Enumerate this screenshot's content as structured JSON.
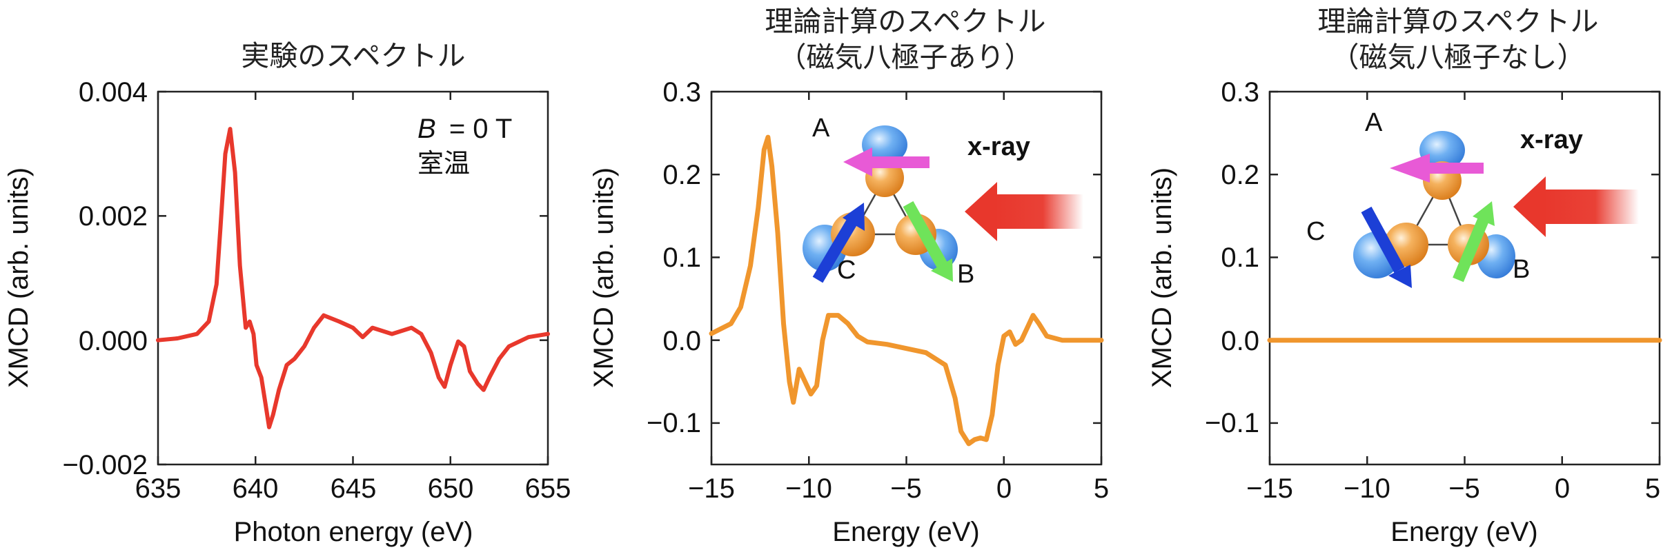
{
  "colors": {
    "experiment": "#e8382c",
    "theory": "#f0962d",
    "pink_arrow": "#e85ad6",
    "blue_arrow": "#1c3fd6",
    "green_arrow": "#6fe35a",
    "xray_arrow": "#e8372c",
    "orange_atom": "#ef9a3a",
    "blue_lobe": "#3f8fe8"
  },
  "icons": [
    "magnetic-octupole-cluster-icon",
    "xray-arrow-icon",
    "spin-arrow-icon"
  ],
  "chart_data": [
    {
      "type": "line",
      "title": "実験のスペクトル",
      "xlabel": "Photon energy (eV)",
      "ylabel": "XMCD (arb. units)",
      "xlim": [
        635,
        655
      ],
      "ylim": [
        -0.002,
        0.004
      ],
      "xticks": [
        "635",
        "640",
        "645",
        "650",
        "655"
      ],
      "yticks": [
        "−0.002",
        "0.000",
        "0.002",
        "0.004"
      ],
      "annotations": {
        "field": "= 0 T",
        "field_symbol": "B",
        "temperature": "室温"
      },
      "series": [
        {
          "color": "#e8382c",
          "x": [
            635,
            636,
            637,
            637.6,
            638,
            638.2,
            638.45,
            638.7,
            638.95,
            639.2,
            639.5,
            639.7,
            639.9,
            640.05,
            640.3,
            640.5,
            640.7,
            640.9,
            641.2,
            641.6,
            642,
            642.5,
            643,
            643.5,
            643.9,
            644.3,
            645,
            645.5,
            646,
            647,
            648,
            648.5,
            649,
            649.4,
            649.7,
            650,
            650.4,
            650.7,
            651,
            651.4,
            651.7,
            652,
            652.5,
            653,
            654,
            655
          ],
          "y": [
            0,
            3e-05,
            0.0001,
            0.0003,
            0.0009,
            0.0018,
            0.003,
            0.0034,
            0.0027,
            0.0012,
            0.0002,
            0.0003,
            0.0001,
            -0.0004,
            -0.0006,
            -0.001,
            -0.0014,
            -0.0012,
            -0.0008,
            -0.0004,
            -0.0003,
            -0.0001,
            0.0002,
            0.0004,
            0.00035,
            0.0003,
            0.0002,
            5e-05,
            0.0002,
            0.0001,
            0.0002,
            0.0001,
            -0.0002,
            -0.0006,
            -0.00075,
            -0.0004,
            -2e-05,
            -0.0001,
            -0.0005,
            -0.0007,
            -0.0008,
            -0.0006,
            -0.0003,
            -0.0001,
            5e-05,
            0.0001
          ]
        }
      ]
    },
    {
      "type": "line",
      "title": [
        "理論計算のスペクトル",
        "（磁気八極子あり）"
      ],
      "xlabel": "Energy (eV)",
      "ylabel": "XMCD (arb. units)",
      "xlim": [
        -15,
        5
      ],
      "ylim": [
        -0.15,
        0.3
      ],
      "xticks": [
        "−15",
        "−10",
        "−5",
        "0",
        "5"
      ],
      "yticks": [
        "−0.1",
        "0.0",
        "0.1",
        "0.2",
        "0.3"
      ],
      "inset_labels": {
        "a": "A",
        "b": "B",
        "c": "C",
        "xray": "x-ray"
      },
      "series": [
        {
          "color": "#f0962d",
          "x": [
            -15,
            -14,
            -13.5,
            -13,
            -12.6,
            -12.3,
            -12.1,
            -11.9,
            -11.6,
            -11.3,
            -11,
            -10.8,
            -10.5,
            -10.2,
            -9.9,
            -9.6,
            -9.3,
            -9,
            -8.5,
            -8,
            -7.5,
            -7,
            -6,
            -5,
            -4,
            -3,
            -2.5,
            -2.2,
            -1.8,
            -1.5,
            -1.2,
            -0.9,
            -0.6,
            -0.3,
            0,
            0.3,
            0.6,
            0.9,
            1.2,
            1.5,
            1.8,
            2.2,
            3,
            5
          ],
          "y": [
            0.008,
            0.02,
            0.04,
            0.09,
            0.16,
            0.23,
            0.245,
            0.21,
            0.13,
            0.02,
            -0.05,
            -0.075,
            -0.035,
            -0.05,
            -0.065,
            -0.055,
            0.0,
            0.03,
            0.03,
            0.02,
            0.005,
            -0.002,
            -0.005,
            -0.01,
            -0.015,
            -0.03,
            -0.07,
            -0.11,
            -0.125,
            -0.12,
            -0.118,
            -0.12,
            -0.09,
            -0.03,
            0.005,
            0.01,
            -0.005,
            0.0,
            0.015,
            0.03,
            0.02,
            0.005,
            0.0,
            0.0
          ]
        }
      ]
    },
    {
      "type": "line",
      "title": [
        "理論計算のスペクトル",
        "（磁気八極子なし）"
      ],
      "xlabel": "Energy (eV)",
      "ylabel": "XMCD (arb. units)",
      "xlim": [
        -15,
        5
      ],
      "ylim": [
        -0.15,
        0.3
      ],
      "xticks": [
        "−15",
        "−10",
        "−5",
        "0",
        "5"
      ],
      "yticks": [
        "−0.1",
        "0.0",
        "0.1",
        "0.2",
        "0.3"
      ],
      "inset_labels": {
        "a": "A",
        "b": "B",
        "c": "C",
        "xray": "x-ray"
      },
      "series": [
        {
          "color": "#f0962d",
          "x": [
            -15,
            5
          ],
          "y": [
            0,
            0
          ]
        }
      ]
    }
  ]
}
